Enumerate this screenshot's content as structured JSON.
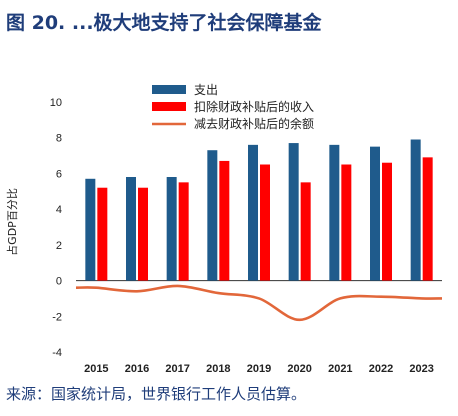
{
  "figure": {
    "title": "图 20. ...极大地支持了社会保障基金",
    "source": "来源：国家统计局，世界银行工作人员估算。"
  },
  "colors": {
    "spending": "#1f5b8c",
    "revenue": "#ff0000",
    "balance": "#e2673a",
    "title": "#1f3d7a"
  },
  "chart_data": {
    "type": "bar",
    "ylabel": "占GDP百分比",
    "ylim": [
      -4,
      10
    ],
    "yticks": [
      -4,
      -2,
      0,
      2,
      4,
      6,
      8,
      10
    ],
    "categories": [
      "2015",
      "2016",
      "2017",
      "2018",
      "2019",
      "2020",
      "2021",
      "2022",
      "2023"
    ],
    "legend_position": "top-right",
    "series": [
      {
        "name": "支出",
        "type": "bar",
        "values": [
          5.7,
          5.8,
          5.8,
          7.3,
          7.6,
          7.7,
          7.6,
          7.5,
          7.9
        ]
      },
      {
        "name": "扣除财政补贴后的收入",
        "type": "bar",
        "values": [
          5.2,
          5.2,
          5.5,
          6.7,
          6.5,
          5.5,
          6.5,
          6.6,
          6.9
        ]
      },
      {
        "name": "减去财政补贴后的余额",
        "type": "line",
        "values": [
          -0.4,
          -0.6,
          -0.3,
          -0.7,
          -1.0,
          -2.2,
          -1.0,
          -0.9,
          -1.0
        ]
      }
    ]
  }
}
